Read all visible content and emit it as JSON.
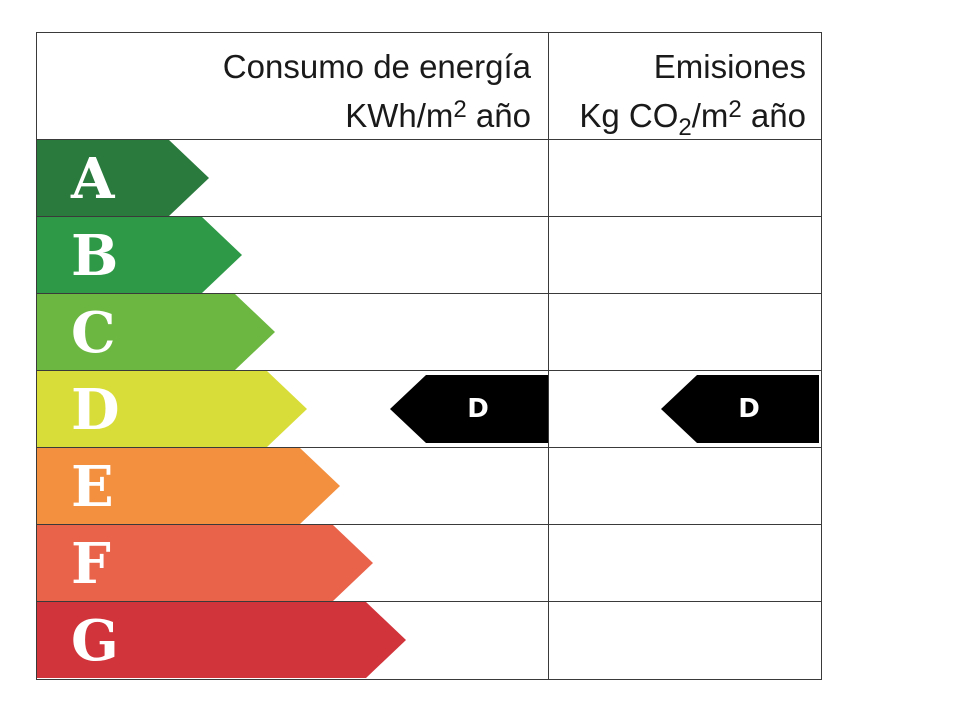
{
  "header": {
    "energy_title": "Consumo de energía",
    "energy_unit_prefix": "KWh/m",
    "energy_unit_exp": "2",
    "energy_unit_suffix": " año",
    "emissions_title": "Emisiones",
    "emissions_unit_prefix": "Kg CO",
    "emissions_unit_sub": "2",
    "emissions_unit_mid": "/m",
    "emissions_unit_exp": "2",
    "emissions_unit_suffix": " año"
  },
  "classes": [
    {
      "letter": "A",
      "color": "#2a7a3e"
    },
    {
      "letter": "B",
      "color": "#2e9a48"
    },
    {
      "letter": "C",
      "color": "#6cb742"
    },
    {
      "letter": "D",
      "color": "#d9dd3a"
    },
    {
      "letter": "E",
      "color": "#f39040"
    },
    {
      "letter": "F",
      "color": "#e9634a"
    },
    {
      "letter": "G",
      "color": "#d1343a"
    }
  ],
  "rating": {
    "energy_class": "D",
    "emissions_class": "D"
  }
}
